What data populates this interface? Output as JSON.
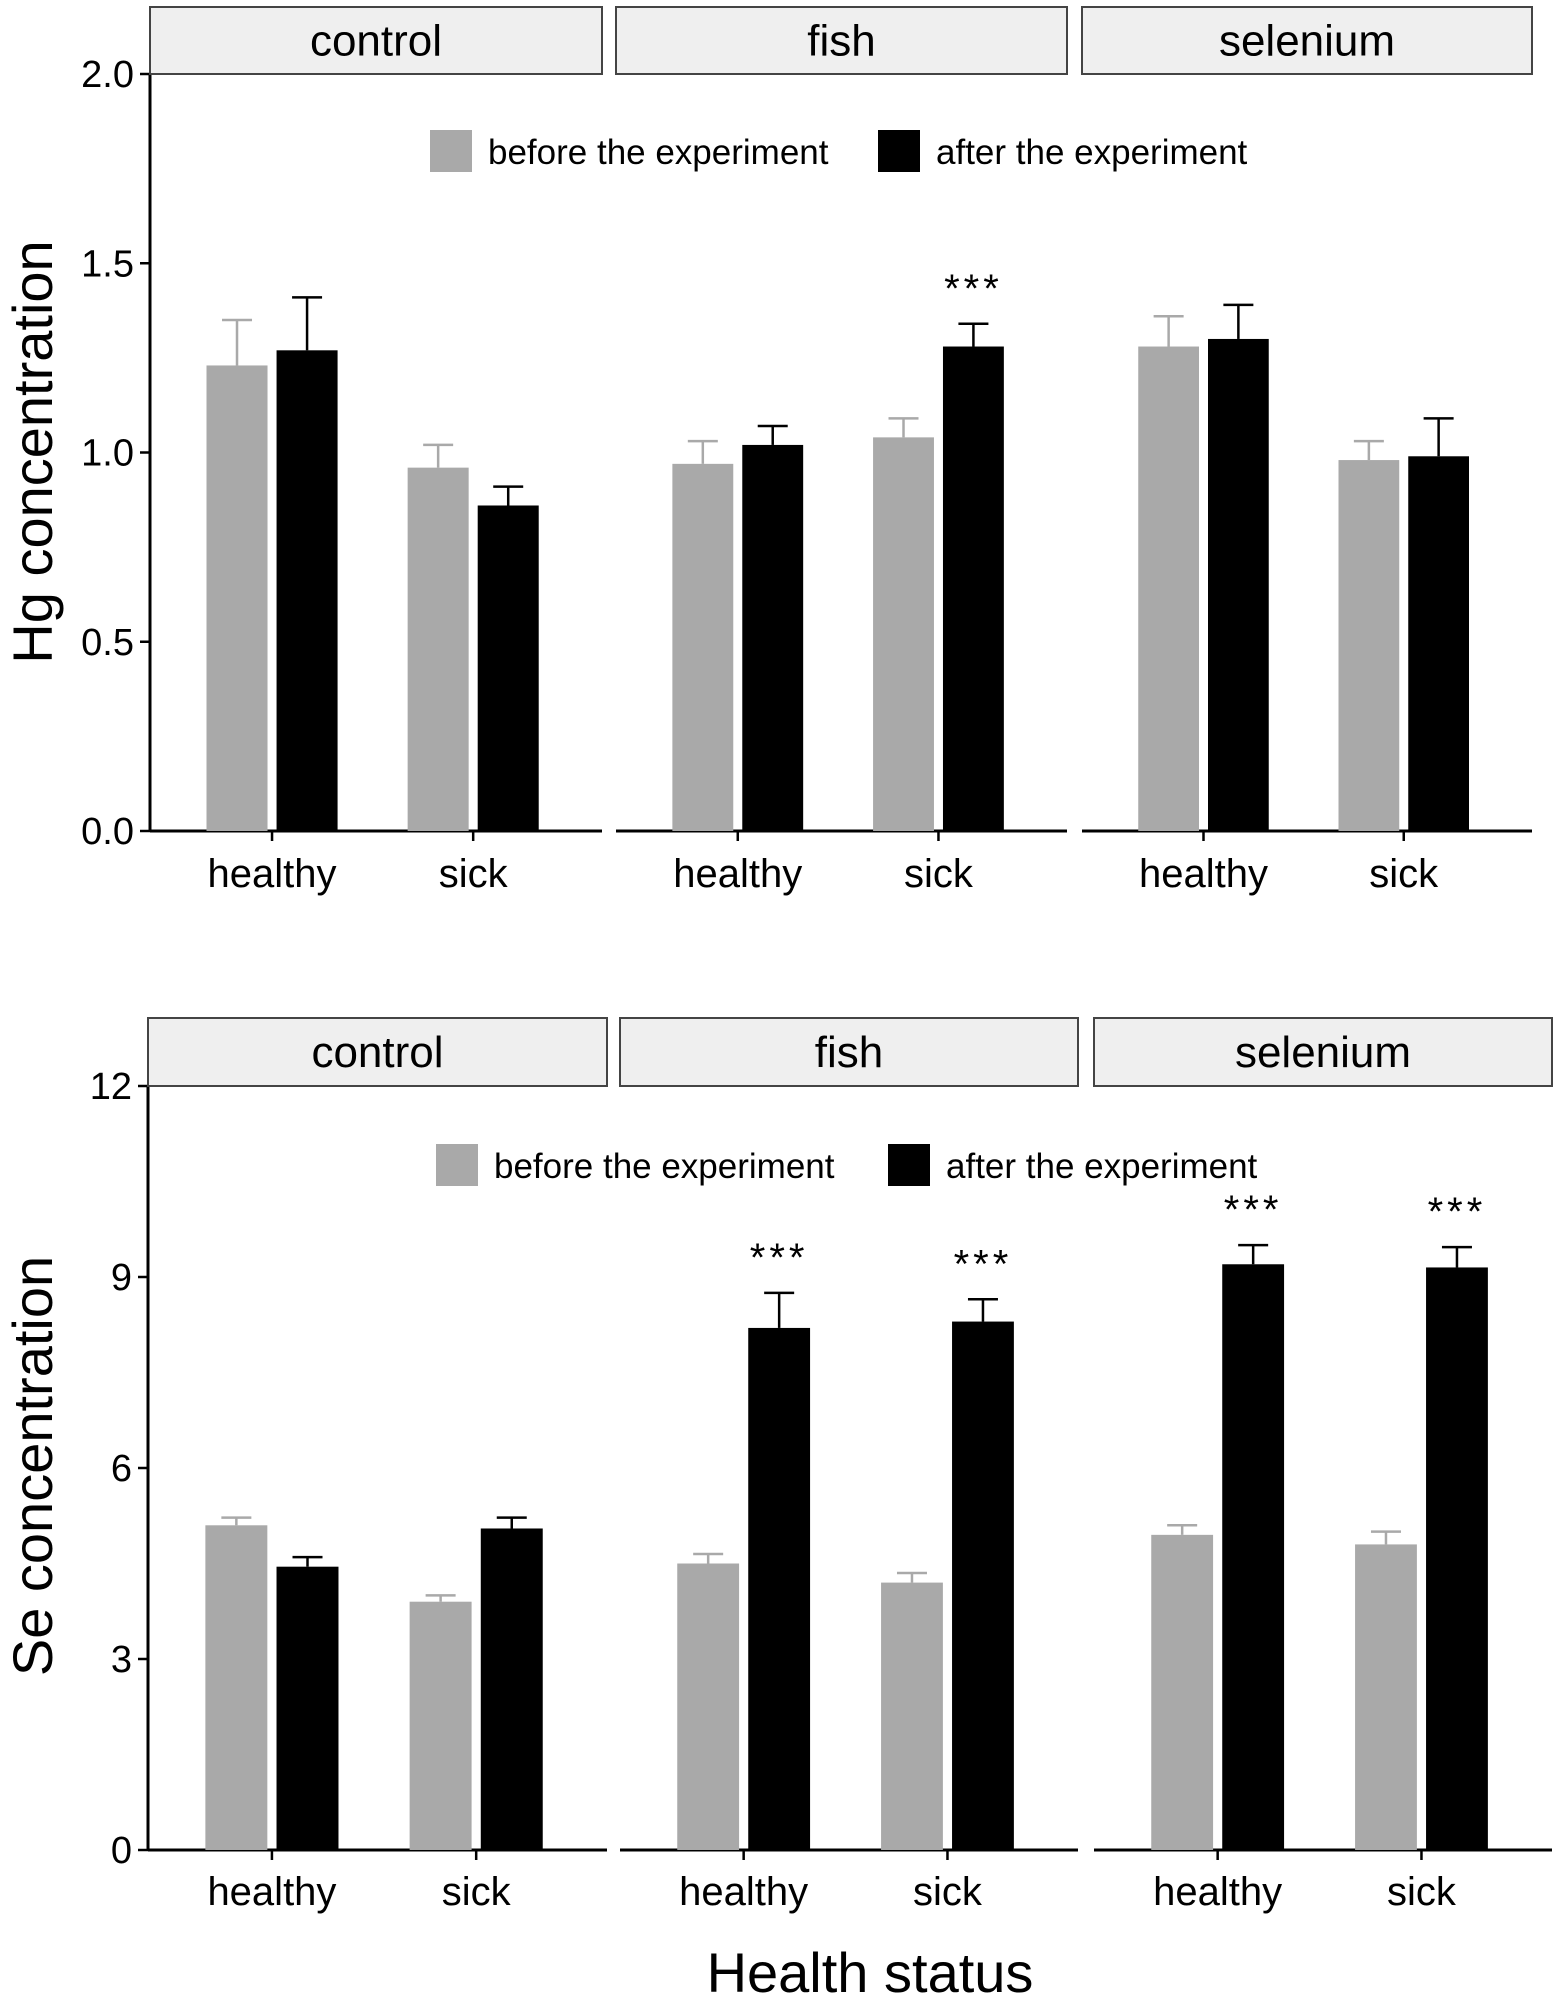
{
  "chart_data": [
    {
      "type": "bar",
      "ylabel": "Hg concentration",
      "xlabel": "",
      "ylim": [
        0,
        2.0
      ],
      "yticks": [
        0.0,
        0.5,
        1.0,
        1.5,
        2.0
      ],
      "ytick_labels": [
        "0.0",
        "0.5",
        "1.0",
        "1.5",
        "2.0"
      ],
      "legend": [
        "before the experiment",
        "after the experiment"
      ],
      "legend_position": "top-center",
      "colors": {
        "before": "#a9a9a9",
        "after": "#000000"
      },
      "panels": [
        {
          "name": "control",
          "categories": [
            "healthy",
            "sick"
          ],
          "series": [
            {
              "name": "before the experiment",
              "values": [
                1.23,
                0.96
              ],
              "errors": [
                0.12,
                0.06
              ]
            },
            {
              "name": "after the experiment",
              "values": [
                1.27,
                0.86
              ],
              "errors": [
                0.14,
                0.05
              ]
            }
          ],
          "annotations": [
            "",
            ""
          ]
        },
        {
          "name": "fish",
          "categories": [
            "healthy",
            "sick"
          ],
          "series": [
            {
              "name": "before the experiment",
              "values": [
                0.97,
                1.04
              ],
              "errors": [
                0.06,
                0.05
              ]
            },
            {
              "name": "after the experiment",
              "values": [
                1.02,
                1.28
              ],
              "errors": [
                0.05,
                0.06
              ]
            }
          ],
          "annotations": [
            "",
            "***"
          ]
        },
        {
          "name": "selenium",
          "categories": [
            "healthy",
            "sick"
          ],
          "series": [
            {
              "name": "before the experiment",
              "values": [
                1.28,
                0.98
              ],
              "errors": [
                0.08,
                0.05
              ]
            },
            {
              "name": "after the experiment",
              "values": [
                1.3,
                0.99
              ],
              "errors": [
                0.09,
                0.1
              ]
            }
          ],
          "annotations": [
            "",
            ""
          ]
        }
      ]
    },
    {
      "type": "bar",
      "ylabel": "Se concentration",
      "xlabel": "Health status",
      "ylim": [
        0,
        12
      ],
      "yticks": [
        0,
        3,
        6,
        9,
        12
      ],
      "ytick_labels": [
        "0",
        "3",
        "6",
        "9",
        "12"
      ],
      "legend": [
        "before the experiment",
        "after the experiment"
      ],
      "legend_position": "top-center",
      "colors": {
        "before": "#a9a9a9",
        "after": "#000000"
      },
      "panels": [
        {
          "name": "control",
          "categories": [
            "healthy",
            "sick"
          ],
          "series": [
            {
              "name": "before the experiment",
              "values": [
                5.1,
                3.9
              ],
              "errors": [
                0.12,
                0.1
              ]
            },
            {
              "name": "after the experiment",
              "values": [
                4.45,
                5.05
              ],
              "errors": [
                0.15,
                0.17
              ]
            }
          ],
          "annotations": [
            "",
            ""
          ]
        },
        {
          "name": "fish",
          "categories": [
            "healthy",
            "sick"
          ],
          "series": [
            {
              "name": "before the experiment",
              "values": [
                4.5,
                4.2
              ],
              "errors": [
                0.15,
                0.15
              ]
            },
            {
              "name": "after the experiment",
              "values": [
                8.2,
                8.3
              ],
              "errors": [
                0.55,
                0.35
              ]
            }
          ],
          "annotations": [
            "***",
            "***"
          ]
        },
        {
          "name": "selenium",
          "categories": [
            "healthy",
            "sick"
          ],
          "series": [
            {
              "name": "before the experiment",
              "values": [
                4.95,
                4.8
              ],
              "errors": [
                0.15,
                0.2
              ]
            },
            {
              "name": "after the experiment",
              "values": [
                9.2,
                9.15
              ],
              "errors": [
                0.3,
                0.32
              ]
            }
          ],
          "annotations": [
            "***",
            "***"
          ]
        }
      ]
    }
  ]
}
